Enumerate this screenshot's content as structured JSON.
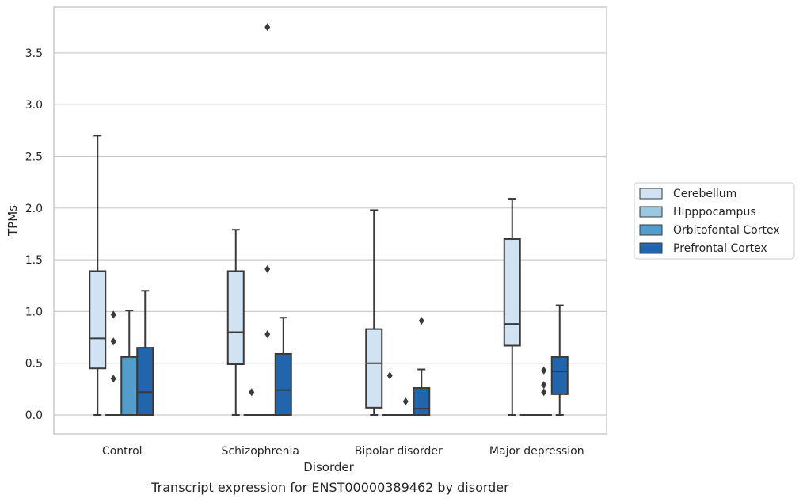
{
  "caption": "Transcript expression for ENST00000389462 by disorder",
  "chart_data": {
    "type": "box",
    "xlabel": "Disorder",
    "ylabel": "TPMs",
    "ylim": [
      -0.18,
      3.95
    ],
    "yticks": [
      0.0,
      0.5,
      1.0,
      1.5,
      2.0,
      2.5,
      3.0,
      3.5
    ],
    "ytick_labels": [
      "0.0",
      "0.5",
      "1.0",
      "1.5",
      "2.0",
      "2.5",
      "3.0",
      "3.5"
    ],
    "grid": "horizontal",
    "legend_position": "right",
    "categories": [
      "Control",
      "Schizophrenia",
      "Bipolar disorder",
      "Major depression"
    ],
    "series": [
      {
        "name": "Cerebellum",
        "color": "#d1e2f2",
        "boxes": [
          {
            "whislo": 0.0,
            "q1": 0.45,
            "med": 0.74,
            "q3": 1.39,
            "whishi": 2.7,
            "fliers": []
          },
          {
            "whislo": 0.0,
            "q1": 0.49,
            "med": 0.8,
            "q3": 1.39,
            "whishi": 1.79,
            "fliers": []
          },
          {
            "whislo": 0.0,
            "q1": 0.07,
            "med": 0.5,
            "q3": 0.83,
            "whishi": 1.98,
            "fliers": []
          },
          {
            "whislo": 0.0,
            "q1": 0.67,
            "med": 0.88,
            "q3": 1.7,
            "whishi": 2.09,
            "fliers": []
          }
        ]
      },
      {
        "name": "Hipppocampus",
        "color": "#9ac8e0",
        "boxes": [
          {
            "whislo": 0.0,
            "q1": 0.0,
            "med": 0.0,
            "q3": 0.0,
            "whishi": 0.0,
            "fliers": [
              0.97,
              0.71,
              0.35
            ]
          },
          {
            "whislo": 0.0,
            "q1": 0.0,
            "med": 0.0,
            "q3": 0.0,
            "whishi": 0.0,
            "fliers": [
              0.22
            ]
          },
          {
            "whislo": 0.0,
            "q1": 0.0,
            "med": 0.0,
            "q3": 0.0,
            "whishi": 0.0,
            "fliers": [
              0.38
            ]
          },
          {
            "whislo": 0.0,
            "q1": 0.0,
            "med": 0.0,
            "q3": 0.0,
            "whishi": 0.0,
            "fliers": []
          }
        ]
      },
      {
        "name": "Orbitofontal Cortex",
        "color": "#529dcc",
        "boxes": [
          {
            "whislo": 0.0,
            "q1": 0.0,
            "med": 0.0,
            "q3": 0.56,
            "whishi": 1.01,
            "fliers": []
          },
          {
            "whislo": 0.0,
            "q1": 0.0,
            "med": 0.0,
            "q3": 0.0,
            "whishi": 0.0,
            "fliers": [
              3.75,
              1.41,
              0.78
            ]
          },
          {
            "whislo": 0.0,
            "q1": 0.0,
            "med": 0.0,
            "q3": 0.0,
            "whishi": 0.0,
            "fliers": [
              0.13
            ]
          },
          {
            "whislo": 0.0,
            "q1": 0.0,
            "med": 0.0,
            "q3": 0.0,
            "whishi": 0.0,
            "fliers": [
              0.43,
              0.29,
              0.22
            ]
          }
        ]
      },
      {
        "name": "Prefrontal Cortex",
        "color": "#2166ac",
        "boxes": [
          {
            "whislo": 0.0,
            "q1": 0.0,
            "med": 0.22,
            "q3": 0.65,
            "whishi": 1.2,
            "fliers": []
          },
          {
            "whislo": 0.0,
            "q1": 0.0,
            "med": 0.24,
            "q3": 0.59,
            "whishi": 0.94,
            "fliers": []
          },
          {
            "whislo": 0.0,
            "q1": 0.0,
            "med": 0.06,
            "q3": 0.26,
            "whishi": 0.44,
            "fliers": [
              0.91
            ]
          },
          {
            "whislo": 0.0,
            "q1": 0.2,
            "med": 0.42,
            "q3": 0.56,
            "whishi": 1.06,
            "fliers": []
          }
        ]
      }
    ]
  }
}
